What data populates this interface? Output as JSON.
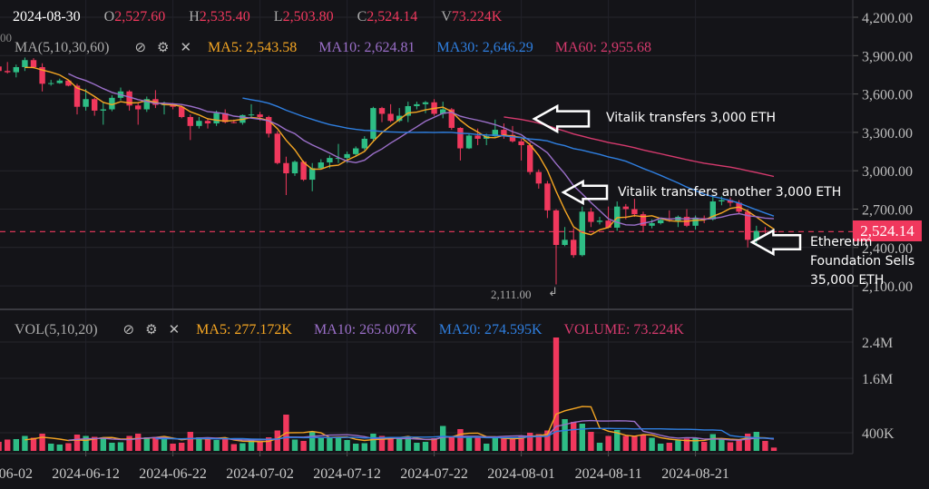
{
  "header": {
    "date": "2024-08-30",
    "open_label": "O",
    "open": "2,527.60",
    "high_label": "H",
    "high": "2,535.40",
    "low_label": "L",
    "low": "2,503.80",
    "close_label": "C",
    "close": "2,524.14",
    "volume_label": "V",
    "volume": "73.224K",
    "cut_label": "00"
  },
  "ma_legend": {
    "title": "MA(5,10,30,60)",
    "ma5": "MA5: 2,543.58",
    "ma10": "MA10: 2,624.81",
    "ma30": "MA30: 2,646.29",
    "ma60": "MA60: 2,955.68"
  },
  "vol_legend": {
    "title": "VOL(5,10,20)",
    "ma5": "MA5: 277.172K",
    "ma10": "MA10: 265.007K",
    "ma20": "MA20: 274.595K",
    "volume": "VOLUME: 73.224K"
  },
  "icons": [
    "eye-slash-icon",
    "gear-icon",
    "close-icon"
  ],
  "price_tag": "2,524.14",
  "low_marker": "2,111.00",
  "annotations": [
    {
      "text": "Vitalik transfers 3,000 ETH"
    },
    {
      "text": "Vitalik transfers another 3,000 ETH"
    },
    {
      "text": "Ethereum Foundation Sells 35,000 ETH"
    }
  ],
  "colors": {
    "background": "#141418",
    "up": "#2ebd85",
    "down": "#f0385d",
    "ma5": "#f5a623",
    "ma10": "#9b6fc9",
    "ma30": "#2f7fe0",
    "ma60": "#d63a6e"
  },
  "chart_data": {
    "type": "candlestick",
    "price_axis": {
      "ticks": [
        "4,200.00",
        "3,900.00",
        "3,600.00",
        "3,300.00",
        "3,000.00",
        "2,700.00",
        "2,400.00",
        "2,100.00"
      ],
      "range": [
        2040,
        4260
      ]
    },
    "volume_axis": {
      "ticks": [
        "2.4M",
        "1.6M",
        "400K"
      ],
      "unit": "K"
    },
    "x_ticks": [
      "2024-06-02",
      "2024-06-12",
      "2024-06-22",
      "2024-07-02",
      "2024-07-12",
      "2024-07-22",
      "2024-08-01",
      "2024-08-11",
      "2024-08-21"
    ],
    "ma_periods": [
      5,
      10,
      30,
      60
    ],
    "vol_ma_periods": [
      5,
      10,
      20
    ],
    "fields": [
      "date",
      "open",
      "high",
      "low",
      "close",
      "volume_k"
    ],
    "candles": [
      [
        "2024-06-01",
        3765,
        3835,
        3750,
        3815,
        180
      ],
      [
        "2024-06-02",
        3815,
        3830,
        3750,
        3780,
        200
      ],
      [
        "2024-06-03",
        3780,
        3850,
        3760,
        3770,
        250
      ],
      [
        "2024-06-04",
        3770,
        3830,
        3730,
        3810,
        260
      ],
      [
        "2024-06-05",
        3810,
        3885,
        3780,
        3865,
        330
      ],
      [
        "2024-06-06",
        3865,
        3880,
        3800,
        3810,
        290
      ],
      [
        "2024-06-07",
        3810,
        3840,
        3620,
        3680,
        380
      ],
      [
        "2024-06-08",
        3680,
        3710,
        3665,
        3685,
        160
      ],
      [
        "2024-06-09",
        3685,
        3720,
        3680,
        3705,
        140
      ],
      [
        "2024-06-10",
        3705,
        3710,
        3660,
        3665,
        170
      ],
      [
        "2024-06-11",
        3665,
        3680,
        3440,
        3500,
        360
      ],
      [
        "2024-06-12",
        3500,
        3640,
        3470,
        3560,
        330
      ],
      [
        "2024-06-13",
        3560,
        3570,
        3430,
        3470,
        310
      ],
      [
        "2024-06-14",
        3470,
        3530,
        3360,
        3480,
        300
      ],
      [
        "2024-06-15",
        3480,
        3590,
        3465,
        3570,
        180
      ],
      [
        "2024-06-16",
        3570,
        3650,
        3550,
        3620,
        190
      ],
      [
        "2024-06-17",
        3620,
        3630,
        3470,
        3510,
        330
      ],
      [
        "2024-06-18",
        3510,
        3530,
        3360,
        3480,
        380
      ],
      [
        "2024-06-19",
        3480,
        3580,
        3460,
        3560,
        300
      ],
      [
        "2024-06-20",
        3560,
        3630,
        3490,
        3515,
        280
      ],
      [
        "2024-06-21",
        3515,
        3540,
        3440,
        3520,
        300
      ],
      [
        "2024-06-22",
        3520,
        3530,
        3480,
        3500,
        160
      ],
      [
        "2024-06-23",
        3500,
        3510,
        3410,
        3420,
        180
      ],
      [
        "2024-06-24",
        3420,
        3440,
        3240,
        3350,
        420
      ],
      [
        "2024-06-25",
        3350,
        3420,
        3330,
        3390,
        300
      ],
      [
        "2024-06-26",
        3390,
        3410,
        3330,
        3370,
        250
      ],
      [
        "2024-06-27",
        3370,
        3470,
        3350,
        3450,
        240
      ],
      [
        "2024-06-28",
        3450,
        3480,
        3370,
        3380,
        260
      ],
      [
        "2024-06-29",
        3380,
        3400,
        3370,
        3375,
        150
      ],
      [
        "2024-06-30",
        3375,
        3440,
        3360,
        3435,
        170
      ],
      [
        "2024-07-01",
        3435,
        3520,
        3420,
        3440,
        230
      ],
      [
        "2024-07-02",
        3440,
        3460,
        3390,
        3420,
        210
      ],
      [
        "2024-07-03",
        3420,
        3430,
        3260,
        3290,
        300
      ],
      [
        "2024-07-04",
        3290,
        3310,
        3050,
        3060,
        450
      ],
      [
        "2024-07-05",
        3060,
        3110,
        2810,
        2980,
        800
      ],
      [
        "2024-07-06",
        2980,
        3080,
        2960,
        3070,
        250
      ],
      [
        "2024-07-07",
        3070,
        3080,
        2920,
        2930,
        220
      ],
      [
        "2024-07-08",
        2930,
        3060,
        2840,
        3020,
        420
      ],
      [
        "2024-07-09",
        3020,
        3090,
        3010,
        3065,
        300
      ],
      [
        "2024-07-10",
        3065,
        3120,
        3020,
        3100,
        290
      ],
      [
        "2024-07-11",
        3100,
        3210,
        3060,
        3100,
        290
      ],
      [
        "2024-07-12",
        3100,
        3150,
        3060,
        3130,
        240
      ],
      [
        "2024-07-13",
        3130,
        3190,
        3110,
        3175,
        160
      ],
      [
        "2024-07-14",
        3175,
        3270,
        3160,
        3250,
        170
      ],
      [
        "2024-07-15",
        3250,
        3500,
        3230,
        3490,
        380
      ],
      [
        "2024-07-16",
        3490,
        3500,
        3380,
        3445,
        330
      ],
      [
        "2024-07-17",
        3445,
        3520,
        3380,
        3390,
        300
      ],
      [
        "2024-07-18",
        3390,
        3490,
        3380,
        3430,
        270
      ],
      [
        "2024-07-19",
        3430,
        3540,
        3380,
        3505,
        310
      ],
      [
        "2024-07-20",
        3505,
        3540,
        3480,
        3520,
        180
      ],
      [
        "2024-07-21",
        3520,
        3545,
        3450,
        3535,
        200
      ],
      [
        "2024-07-22",
        3535,
        3560,
        3430,
        3445,
        280
      ],
      [
        "2024-07-23",
        3445,
        3540,
        3410,
        3480,
        550
      ],
      [
        "2024-07-24",
        3480,
        3490,
        3320,
        3335,
        320
      ],
      [
        "2024-07-25",
        3335,
        3340,
        3080,
        3175,
        480
      ],
      [
        "2024-07-26",
        3175,
        3290,
        3170,
        3275,
        310
      ],
      [
        "2024-07-27",
        3275,
        3330,
        3200,
        3250,
        300
      ],
      [
        "2024-07-28",
        3250,
        3290,
        3200,
        3270,
        160
      ],
      [
        "2024-07-29",
        3270,
        3400,
        3260,
        3320,
        310
      ],
      [
        "2024-07-30",
        3320,
        3370,
        3250,
        3280,
        300
      ],
      [
        "2024-07-31",
        3280,
        3350,
        3220,
        3230,
        280
      ],
      [
        "2024-08-01",
        3230,
        3250,
        3080,
        3200,
        330
      ],
      [
        "2024-08-02",
        3200,
        3220,
        2970,
        2990,
        400
      ],
      [
        "2024-08-03",
        2990,
        3010,
        2860,
        2900,
        370
      ],
      [
        "2024-08-04",
        2900,
        2920,
        2630,
        2690,
        450
      ],
      [
        "2024-08-05",
        2690,
        2700,
        2111,
        2420,
        2500
      ],
      [
        "2024-08-06",
        2420,
        2560,
        2410,
        2460,
        700
      ],
      [
        "2024-08-07",
        2460,
        2550,
        2320,
        2340,
        640
      ],
      [
        "2024-08-08",
        2340,
        2720,
        2330,
        2680,
        600
      ],
      [
        "2024-08-09",
        2680,
        2710,
        2560,
        2600,
        420
      ],
      [
        "2024-08-10",
        2600,
        2640,
        2580,
        2610,
        180
      ],
      [
        "2024-08-11",
        2610,
        2720,
        2550,
        2555,
        330
      ],
      [
        "2024-08-12",
        2555,
        2760,
        2530,
        2720,
        460
      ],
      [
        "2024-08-13",
        2720,
        2740,
        2620,
        2700,
        330
      ],
      [
        "2024-08-14",
        2700,
        2780,
        2640,
        2660,
        320
      ],
      [
        "2024-08-15",
        2660,
        2680,
        2520,
        2570,
        350
      ],
      [
        "2024-08-16",
        2570,
        2620,
        2550,
        2590,
        290
      ],
      [
        "2024-08-17",
        2590,
        2630,
        2580,
        2615,
        160
      ],
      [
        "2024-08-18",
        2615,
        2690,
        2600,
        2610,
        180
      ],
      [
        "2024-08-19",
        2610,
        2650,
        2560,
        2640,
        230
      ],
      [
        "2024-08-20",
        2640,
        2700,
        2560,
        2570,
        270
      ],
      [
        "2024-08-21",
        2570,
        2650,
        2540,
        2630,
        280
      ],
      [
        "2024-08-22",
        2630,
        2650,
        2590,
        2620,
        200
      ],
      [
        "2024-08-23",
        2620,
        2800,
        2610,
        2760,
        370
      ],
      [
        "2024-08-24",
        2760,
        2800,
        2730,
        2770,
        250
      ],
      [
        "2024-08-25",
        2770,
        2790,
        2720,
        2750,
        190
      ],
      [
        "2024-08-26",
        2750,
        2770,
        2660,
        2680,
        230
      ],
      [
        "2024-08-27",
        2680,
        2700,
        2400,
        2460,
        380
      ],
      [
        "2024-08-28",
        2460,
        2570,
        2420,
        2530,
        420
      ],
      [
        "2024-08-29",
        2530,
        2560,
        2510,
        2525,
        220
      ],
      [
        "2024-08-30",
        2527.6,
        2535.4,
        2503.8,
        2524.14,
        73.224
      ]
    ]
  }
}
